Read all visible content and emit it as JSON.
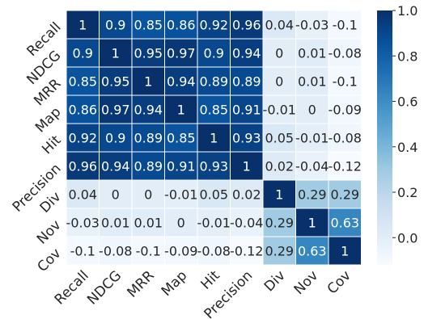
{
  "chart_data": {
    "type": "heatmap",
    "title": "",
    "xlabel": "",
    "ylabel": "",
    "labels": [
      "Recall",
      "NDCG",
      "MRR",
      "Map",
      "Hit",
      "Precision",
      "Div",
      "Nov",
      "Cov"
    ],
    "matrix": [
      [
        1,
        0.9,
        0.85,
        0.86,
        0.92,
        0.96,
        0.04,
        -0.03,
        -0.1
      ],
      [
        0.9,
        1,
        0.95,
        0.97,
        0.9,
        0.94,
        0,
        0.01,
        -0.08
      ],
      [
        0.85,
        0.95,
        1,
        0.94,
        0.89,
        0.89,
        0,
        0.01,
        -0.1
      ],
      [
        0.86,
        0.97,
        0.94,
        1,
        0.85,
        0.91,
        -0.01,
        0,
        -0.09
      ],
      [
        0.92,
        0.9,
        0.89,
        0.85,
        1,
        0.93,
        0.05,
        -0.01,
        -0.08
      ],
      [
        0.96,
        0.94,
        0.89,
        0.91,
        0.93,
        1,
        0.02,
        -0.04,
        -0.12
      ],
      [
        0.04,
        0,
        0,
        -0.01,
        0.05,
        0.02,
        1,
        0.29,
        0.29
      ],
      [
        -0.03,
        0.01,
        0.01,
        0,
        -0.01,
        -0.04,
        0.29,
        1,
        0.63
      ],
      [
        -0.1,
        -0.08,
        -0.1,
        -0.09,
        -0.08,
        -0.12,
        0.29,
        0.63,
        1
      ]
    ],
    "colorscale": {
      "name": "Blues",
      "vmin": -0.12,
      "vmax": 1.0,
      "ticks": [
        "1.0",
        "0.8",
        "0.6",
        "0.4",
        "0.2",
        "0.0"
      ],
      "tick_values": [
        1.0,
        0.8,
        0.6,
        0.4,
        0.2,
        0.0
      ]
    },
    "grid": false,
    "legend_position": "right"
  }
}
